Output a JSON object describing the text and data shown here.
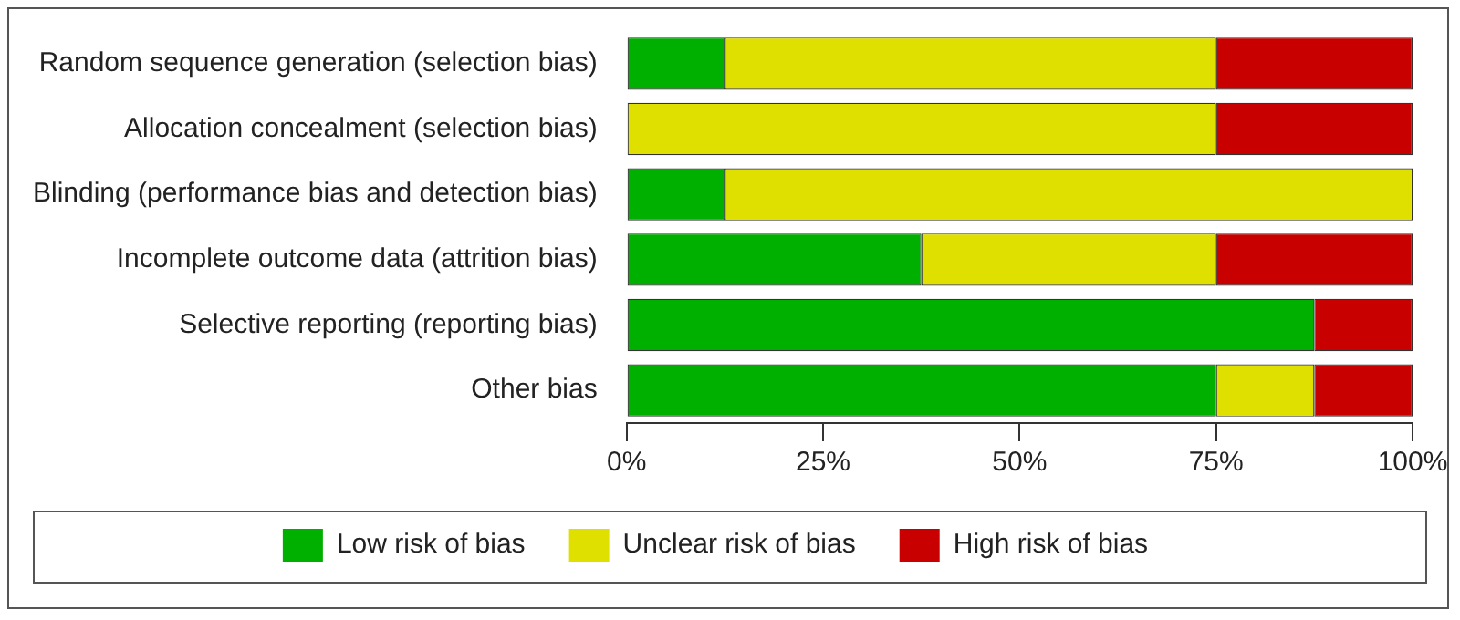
{
  "chart_data": {
    "type": "bar",
    "orientation": "horizontal",
    "stacked": true,
    "categories": [
      "Random sequence generation (selection bias)",
      "Allocation concealment (selection bias)",
      "Blinding (performance bias and detection bias)",
      "Incomplete outcome data (attrition bias)",
      "Selective reporting (reporting bias)",
      "Other bias"
    ],
    "series": [
      {
        "name": "Low risk of bias",
        "color": "#00b000",
        "values": [
          12.5,
          0,
          12.5,
          37.5,
          87.5,
          75
        ]
      },
      {
        "name": "Unclear risk of bias",
        "color": "#e0e000",
        "values": [
          62.5,
          75,
          87.5,
          37.5,
          0,
          12.5
        ]
      },
      {
        "name": "High risk of bias",
        "color": "#c80000",
        "values": [
          25,
          25,
          0,
          25,
          12.5,
          12.5
        ]
      }
    ],
    "xlim": [
      0,
      100
    ],
    "xticks": [
      {
        "value": 0,
        "label": "0%"
      },
      {
        "value": 25,
        "label": "25%"
      },
      {
        "value": 50,
        "label": "50%"
      },
      {
        "value": 75,
        "label": "75%"
      },
      {
        "value": 100,
        "label": "100%"
      }
    ],
    "grid": false,
    "legend": "bottom"
  }
}
